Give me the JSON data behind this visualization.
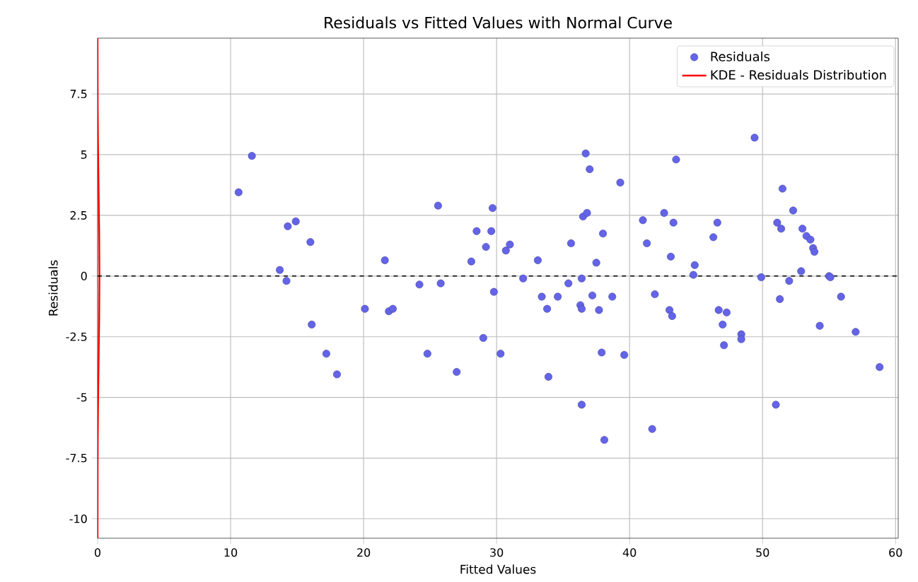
{
  "chart_data": {
    "type": "scatter",
    "title": "Residuals vs Fitted Values with Normal Curve",
    "xlabel": "Fitted Values",
    "ylabel": "Residuals",
    "xlim": [
      0,
      60.2
    ],
    "ylim": [
      -10.8,
      9.8
    ],
    "xticks": [
      0,
      10,
      20,
      30,
      40,
      50,
      60
    ],
    "yticks": [
      -10,
      -7.5,
      -5,
      -2.5,
      0,
      2.5,
      5,
      7.5
    ],
    "grid": true,
    "legend": "top right",
    "ref_lines": [
      {
        "axis": "y",
        "value": 0,
        "color": "#000000",
        "line_style": "dashed"
      }
    ],
    "series": [
      {
        "name": "Residuals",
        "color": "#6464e8",
        "marker": "circle",
        "x": [
          10.6,
          11.6,
          13.7,
          14.2,
          14.3,
          14.9,
          16.0,
          16.1,
          17.2,
          18.0,
          20.1,
          21.6,
          21.9,
          22.2,
          24.2,
          24.8,
          25.6,
          25.8,
          27.0,
          28.1,
          28.5,
          29.0,
          29.2,
          29.6,
          29.7,
          29.8,
          30.3,
          30.7,
          31.0,
          32.0,
          33.1,
          33.4,
          33.8,
          33.9,
          34.6,
          35.4,
          35.6,
          36.3,
          36.4,
          36.4,
          36.4,
          36.5,
          36.8,
          36.7,
          37.0,
          37.2,
          37.5,
          37.7,
          37.9,
          38.0,
          38.1,
          38.7,
          39.3,
          39.6,
          41.0,
          41.3,
          41.7,
          41.9,
          42.6,
          43.0,
          43.1,
          43.2,
          43.3,
          43.5,
          44.8,
          44.9,
          46.3,
          46.6,
          46.7,
          47.0,
          47.1,
          47.3,
          48.4,
          48.4,
          49.4,
          49.9,
          51.0,
          51.1,
          51.3,
          51.4,
          51.5,
          52.0,
          52.3,
          52.9,
          53.0,
          53.3,
          53.6,
          53.8,
          53.9,
          54.3,
          55.0,
          55.1,
          55.9,
          57.0,
          58.8
        ],
        "values": [
          3.45,
          4.95,
          0.25,
          -0.2,
          2.05,
          2.25,
          1.4,
          -2.0,
          -3.2,
          -4.05,
          -1.35,
          0.65,
          -1.45,
          -1.35,
          -0.35,
          -3.2,
          2.9,
          -0.3,
          -3.95,
          0.6,
          1.85,
          -2.55,
          1.2,
          1.85,
          2.8,
          -0.65,
          -3.2,
          1.05,
          1.3,
          -0.1,
          0.65,
          -0.85,
          -1.35,
          -4.15,
          -0.85,
          -0.3,
          1.35,
          -1.2,
          -0.1,
          -1.35,
          -5.3,
          2.45,
          2.6,
          5.05,
          4.4,
          -0.8,
          0.55,
          -1.4,
          -3.15,
          1.75,
          -6.75,
          -0.85,
          3.85,
          -3.25,
          2.3,
          1.35,
          -6.3,
          -0.75,
          2.6,
          -1.4,
          0.8,
          -1.65,
          2.2,
          4.8,
          0.05,
          0.45,
          1.6,
          2.2,
          -1.4,
          -2.0,
          -2.85,
          -1.5,
          -2.4,
          -2.6,
          5.7,
          -0.05,
          -5.3,
          2.2,
          -0.95,
          1.95,
          3.6,
          -0.2,
          2.7,
          0.2,
          1.95,
          1.65,
          1.5,
          1.15,
          1.0,
          -2.05,
          0.0,
          -0.05,
          -0.85,
          -2.3,
          -3.75
        ]
      },
      {
        "name": "KDE - Residuals Distribution",
        "type": "line",
        "color": "#ff0000",
        "line_style": "solid",
        "x": [
          0.0,
          0.003,
          0.01,
          0.03,
          0.07,
          0.12,
          0.14,
          0.12,
          0.07,
          0.03,
          0.01,
          0.003,
          0.0
        ],
        "values": [
          -10.8,
          -8.5,
          -7,
          -5.5,
          -3.8,
          -1.8,
          0,
          1.8,
          3.8,
          5.5,
          7,
          8.5,
          9.8
        ]
      }
    ]
  }
}
